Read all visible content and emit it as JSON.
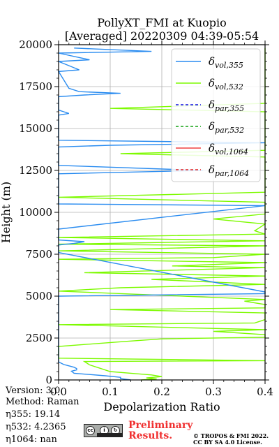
{
  "chart_data": {
    "type": "line",
    "title": "PollyXT_FMI at Kuopio",
    "subtitle": "[Averaged] 20220309 04:39-05:54",
    "xlabel": "Depolarization Ratio",
    "ylabel": "Height (m)",
    "xlim": [
      0.0,
      0.4
    ],
    "ylim": [
      0,
      20000
    ],
    "x_ticks": [
      "0.0",
      "0.1",
      "0.2",
      "0.3",
      "0.4"
    ],
    "y_ticks": [
      "0",
      "2500",
      "5000",
      "7500",
      "10000",
      "12500",
      "15000",
      "17500",
      "20000"
    ],
    "grid": true,
    "legend_position": "top-right",
    "series": [
      {
        "name": "vol,355",
        "color": "#2a8cf0",
        "dash": "solid",
        "y": [
          0,
          80,
          160,
          250,
          400,
          520,
          600,
          680,
          760,
          840,
          920,
          1000,
          1080,
          1150,
          1300,
          2500,
          5000,
          5150,
          5250,
          7600,
          8050,
          8150,
          8250,
          8350,
          9000,
          10400,
          10500,
          11600,
          11900,
          12000,
          12200,
          12300,
          12500,
          12800,
          13000,
          13900,
          14000,
          14150,
          14300,
          15500,
          15800,
          15900,
          16000,
          16100,
          16900,
          17000,
          17100,
          17200,
          17400,
          18400,
          18500,
          19000,
          19100,
          19500,
          19600,
          19800
        ],
        "values": [
          0.14,
          0.12,
          0.12,
          0.09,
          0.03,
          0.025,
          0.035,
          0.035,
          0.03,
          0.02,
          0.01,
          0.005,
          0.0,
          0.0,
          0.0,
          0.0,
          0.0,
          0.4,
          0.4,
          0.0,
          0.0,
          0.03,
          0.05,
          0.0,
          0.0,
          0.4,
          0.0,
          0.0,
          0.0,
          0.0,
          0.0,
          0.0,
          0.28,
          0.0,
          0.0,
          0.0,
          0.1,
          0.4,
          0.0,
          0.0,
          0.0,
          0.02,
          0.01,
          0.0,
          0.0,
          0.05,
          0.12,
          0.04,
          0.02,
          0.0,
          0.04,
          0.0,
          0.06,
          0.0,
          0.18,
          0.03
        ]
      },
      {
        "name": "vol,532",
        "color": "#7dfa00",
        "dash": "solid",
        "y": [
          0,
          60,
          120,
          200,
          300,
          400,
          500,
          700,
          900,
          1100,
          1150,
          1300,
          2000,
          2300,
          2450,
          2550,
          2700,
          2900,
          3000,
          3300,
          3400,
          3600,
          4000,
          4200,
          4300,
          4500,
          4700,
          4800,
          5300,
          5500,
          5700,
          6000,
          6200,
          6400,
          6700,
          6800,
          7000,
          7200,
          7300,
          7500,
          7700,
          7900,
          8000,
          8100,
          8300,
          8500,
          8700,
          8900,
          9300,
          9600,
          9900,
          10200,
          10600,
          10900,
          11200,
          11500,
          11800,
          12100,
          12400,
          12700,
          13000,
          13300,
          13500,
          13700,
          13900,
          14200,
          14500,
          14800,
          15100,
          15400,
          15700,
          16000,
          16200,
          16500,
          16800,
          17100,
          17400,
          17700,
          18000,
          18300,
          18600,
          18900,
          19200,
          19500,
          19800
        ],
        "values": [
          0.16,
          0.19,
          0.17,
          0.2,
          0.18,
          0.14,
          0.1,
          0.08,
          0.06,
          0.05,
          0.4,
          0.0,
          0.0,
          0.13,
          0.2,
          0.4,
          0.4,
          0.3,
          0.4,
          0.0,
          0.38,
          0.4,
          0.4,
          0.1,
          0.4,
          0.4,
          0.36,
          0.4,
          0.0,
          0.12,
          0.4,
          0.18,
          0.4,
          0.05,
          0.4,
          0.22,
          0.4,
          0.0,
          0.3,
          0.4,
          0.0,
          0.27,
          0.4,
          0.0,
          0.4,
          0.0,
          0.4,
          0.38,
          0.4,
          0.3,
          0.4,
          0.4,
          0.4,
          0.0,
          0.4,
          0.4,
          0.4,
          0.4,
          0.4,
          0.4,
          0.4,
          0.4,
          0.12,
          0.4,
          0.4,
          0.4,
          0.4,
          0.4,
          0.4,
          0.4,
          0.4,
          0.4,
          0.1,
          0.4,
          0.4,
          0.4,
          0.4,
          0.4,
          0.4,
          0.4,
          0.4,
          0.4,
          0.4,
          0.4,
          0.4
        ]
      },
      {
        "name": "par,355",
        "color": "#1010e0",
        "dash": "dashed",
        "y": [],
        "values": []
      },
      {
        "name": "par,532",
        "color": "#10a010",
        "dash": "dashed",
        "y": [],
        "values": []
      },
      {
        "name": "vol,1064",
        "color": "#f04040",
        "dash": "solid",
        "y": [],
        "values": []
      },
      {
        "name": "par,1064",
        "color": "#e02020",
        "dash": "dashed",
        "y": [],
        "values": []
      }
    ]
  },
  "legend": [
    {
      "symbol": "δ",
      "sub": "vol,355"
    },
    {
      "symbol": "δ",
      "sub": "vol,532"
    },
    {
      "symbol": "δ",
      "sub": "par,355"
    },
    {
      "symbol": "δ",
      "sub": "par,532"
    },
    {
      "symbol": "δ",
      "sub": "vol,1064"
    },
    {
      "symbol": "δ",
      "sub": "par,1064"
    }
  ],
  "info": {
    "version": "Version: 3.0",
    "method": "Method: Raman",
    "eta355": "η355:  19.14",
    "eta532": "η532: 4.2365",
    "eta1064": "η1064:    nan"
  },
  "footer": {
    "preliminary_line1": "Preliminary",
    "preliminary_line2": "Results.",
    "license_line1": "© TROPOS & FMI 2022.",
    "license_line2": "CC BY SA 4.0 License.",
    "badge_icons": [
      "cc-icon",
      "by-icon",
      "sa-icon"
    ]
  }
}
